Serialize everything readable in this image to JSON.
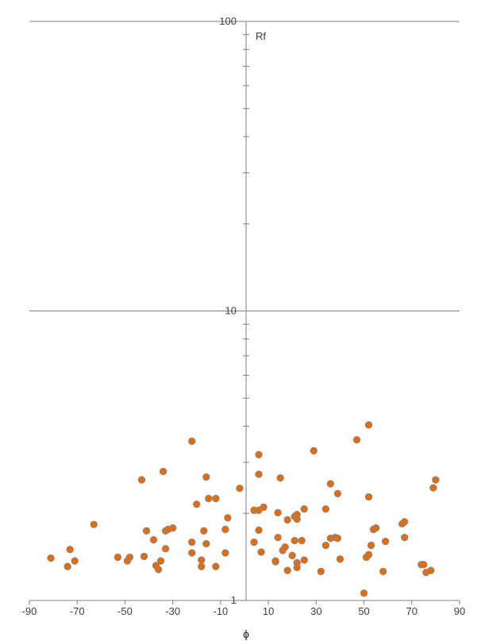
{
  "chart_data": {
    "type": "scatter",
    "title": "",
    "xlabel": "ϕ",
    "ylabel": "Rf",
    "xlim": [
      -90,
      90
    ],
    "ylim": [
      1,
      100
    ],
    "y_scale": "log",
    "grid": "horizontal at decades",
    "legend": "none",
    "marker_color": "#e36c09",
    "marker_edge_color": "#8a8a8a",
    "x_ticks": [
      "-90",
      "-70",
      "-50",
      "-30",
      "-10",
      "10",
      "30",
      "50",
      "70",
      "90"
    ],
    "y_ticks": [
      "1",
      "10",
      "100"
    ],
    "points": [
      {
        "x": -81,
        "y": 1.4
      },
      {
        "x": -74,
        "y": 1.31
      },
      {
        "x": -73,
        "y": 1.5
      },
      {
        "x": -71,
        "y": 1.37
      },
      {
        "x": -63,
        "y": 1.83
      },
      {
        "x": -53,
        "y": 1.41
      },
      {
        "x": -49,
        "y": 1.37
      },
      {
        "x": -48,
        "y": 1.41
      },
      {
        "x": -43,
        "y": 2.61
      },
      {
        "x": -42,
        "y": 1.42
      },
      {
        "x": -41,
        "y": 1.74
      },
      {
        "x": -38,
        "y": 1.62
      },
      {
        "x": -37,
        "y": 1.32
      },
      {
        "x": -36,
        "y": 1.28
      },
      {
        "x": -35,
        "y": 1.37
      },
      {
        "x": -34,
        "y": 2.79
      },
      {
        "x": -33,
        "y": 1.74
      },
      {
        "x": -33,
        "y": 1.51
      },
      {
        "x": -32,
        "y": 1.76
      },
      {
        "x": -30,
        "y": 1.78
      },
      {
        "x": -22,
        "y": 3.55
      },
      {
        "x": -22,
        "y": 1.46
      },
      {
        "x": -22,
        "y": 1.59
      },
      {
        "x": -20,
        "y": 2.15
      },
      {
        "x": -18,
        "y": 1.38
      },
      {
        "x": -18,
        "y": 1.31
      },
      {
        "x": -17,
        "y": 1.74
      },
      {
        "x": -16,
        "y": 1.57
      },
      {
        "x": -16,
        "y": 2.67
      },
      {
        "x": -15,
        "y": 2.25
      },
      {
        "x": -12,
        "y": 2.25
      },
      {
        "x": -12,
        "y": 1.31
      },
      {
        "x": -8,
        "y": 1.76
      },
      {
        "x": -8,
        "y": 1.46
      },
      {
        "x": -7,
        "y": 1.93
      },
      {
        "x": -2,
        "y": 2.44
      },
      {
        "x": 4,
        "y": 1.59
      },
      {
        "x": 4,
        "y": 2.05
      },
      {
        "x": 6,
        "y": 3.19
      },
      {
        "x": 6,
        "y": 2.73
      },
      {
        "x": 6,
        "y": 2.05
      },
      {
        "x": 6,
        "y": 1.75
      },
      {
        "x": 7,
        "y": 1.47
      },
      {
        "x": 8,
        "y": 2.1
      },
      {
        "x": 13,
        "y": 1.36
      },
      {
        "x": 13,
        "y": 1.37
      },
      {
        "x": 14,
        "y": 1.65
      },
      {
        "x": 14,
        "y": 2.01
      },
      {
        "x": 15,
        "y": 2.65
      },
      {
        "x": 16,
        "y": 1.49
      },
      {
        "x": 17,
        "y": 1.53
      },
      {
        "x": 18,
        "y": 1.27
      },
      {
        "x": 18,
        "y": 1.9
      },
      {
        "x": 20,
        "y": 1.43
      },
      {
        "x": 21,
        "y": 1.95
      },
      {
        "x": 21,
        "y": 1.61
      },
      {
        "x": 22,
        "y": 1.35
      },
      {
        "x": 22,
        "y": 1.3
      },
      {
        "x": 22,
        "y": 1.91
      },
      {
        "x": 22,
        "y": 1.98
      },
      {
        "x": 24,
        "y": 1.61
      },
      {
        "x": 25,
        "y": 2.07
      },
      {
        "x": 25,
        "y": 1.38
      },
      {
        "x": 29,
        "y": 3.29
      },
      {
        "x": 32,
        "y": 1.26
      },
      {
        "x": 34,
        "y": 2.07
      },
      {
        "x": 34,
        "y": 1.55
      },
      {
        "x": 36,
        "y": 1.64
      },
      {
        "x": 36,
        "y": 2.53
      },
      {
        "x": 38,
        "y": 1.65
      },
      {
        "x": 39,
        "y": 1.64
      },
      {
        "x": 39,
        "y": 2.34
      },
      {
        "x": 40,
        "y": 1.39
      },
      {
        "x": 47,
        "y": 3.59
      },
      {
        "x": 50,
        "y": 1.06
      },
      {
        "x": 51,
        "y": 1.41
      },
      {
        "x": 52,
        "y": 4.04
      },
      {
        "x": 52,
        "y": 2.28
      },
      {
        "x": 52,
        "y": 1.44
      },
      {
        "x": 53,
        "y": 1.55
      },
      {
        "x": 54,
        "y": 1.76
      },
      {
        "x": 55,
        "y": 1.78
      },
      {
        "x": 58,
        "y": 1.26
      },
      {
        "x": 59,
        "y": 1.6
      },
      {
        "x": 66,
        "y": 1.84
      },
      {
        "x": 67,
        "y": 1.87
      },
      {
        "x": 67,
        "y": 1.65
      },
      {
        "x": 74,
        "y": 1.33
      },
      {
        "x": 75,
        "y": 1.33
      },
      {
        "x": 76,
        "y": 1.25
      },
      {
        "x": 78,
        "y": 1.27
      },
      {
        "x": 79,
        "y": 2.45
      },
      {
        "x": 80,
        "y": 2.61
      }
    ]
  }
}
